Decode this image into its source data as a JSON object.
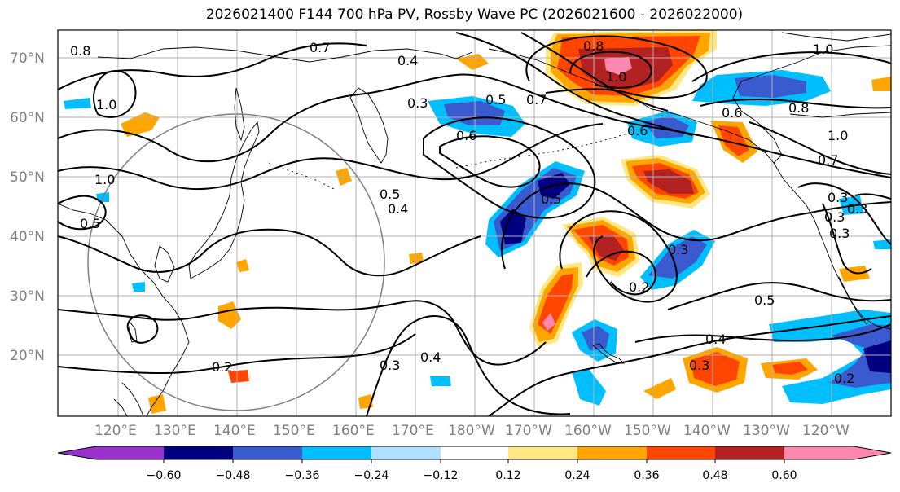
{
  "title": "2026021400 F144 700 hPa PV, Rossby Wave PC (2026021600 - 2026022000)",
  "latitude_labels": [
    "70°N",
    "60°N",
    "50°N",
    "40°N",
    "30°N",
    "20°N"
  ],
  "longitude_labels": [
    "120°E",
    "130°E",
    "140°E",
    "150°E",
    "160°E",
    "170°E",
    "180°W",
    "170°W",
    "160°W",
    "150°W",
    "140°W",
    "130°W",
    "120°W"
  ],
  "contour_labels": [
    "0.8",
    "0.7",
    "0.4",
    "0.3",
    "0.5",
    "0.7",
    "0.8",
    "1.0",
    "1.0",
    "0.8",
    "0.6",
    "1.0",
    "0.6",
    "0.6",
    "0.5",
    "0.5",
    "1.0",
    "0.5",
    "0.2",
    "0.3",
    "0.4",
    "0.3",
    "0.5",
    "0.4",
    "0.3",
    "0.2",
    "1.0",
    "0.7",
    "0.3",
    "0.3",
    "0.3",
    "0.2",
    "0.4",
    "0.3"
  ],
  "colorbar": {
    "ticks": [
      "−0.60",
      "−0.48",
      "−0.36",
      "−0.24",
      "−0.12",
      "0.12",
      "0.24",
      "0.36",
      "0.48",
      "0.60"
    ],
    "colors": [
      "#9932cc",
      "#000080",
      "#3a5bd0",
      "#00bfff",
      "#b0e0ff",
      "#ffffff",
      "#ffe884",
      "#ffa500",
      "#ff4500",
      "#b22222",
      "#ff88b0"
    ]
  },
  "colors": {
    "purple": "#9932cc",
    "navy": "#000080",
    "blue": "#3a5bd0",
    "sky": "#00bfff",
    "lightblue": "#b0e0ff",
    "yellow": "#ffe884",
    "orange": "#ffa500",
    "redorange": "#ff4500",
    "darkred": "#b22222",
    "pink": "#ff88b0",
    "grid": "#b0b0b0",
    "circle": "#808080"
  }
}
